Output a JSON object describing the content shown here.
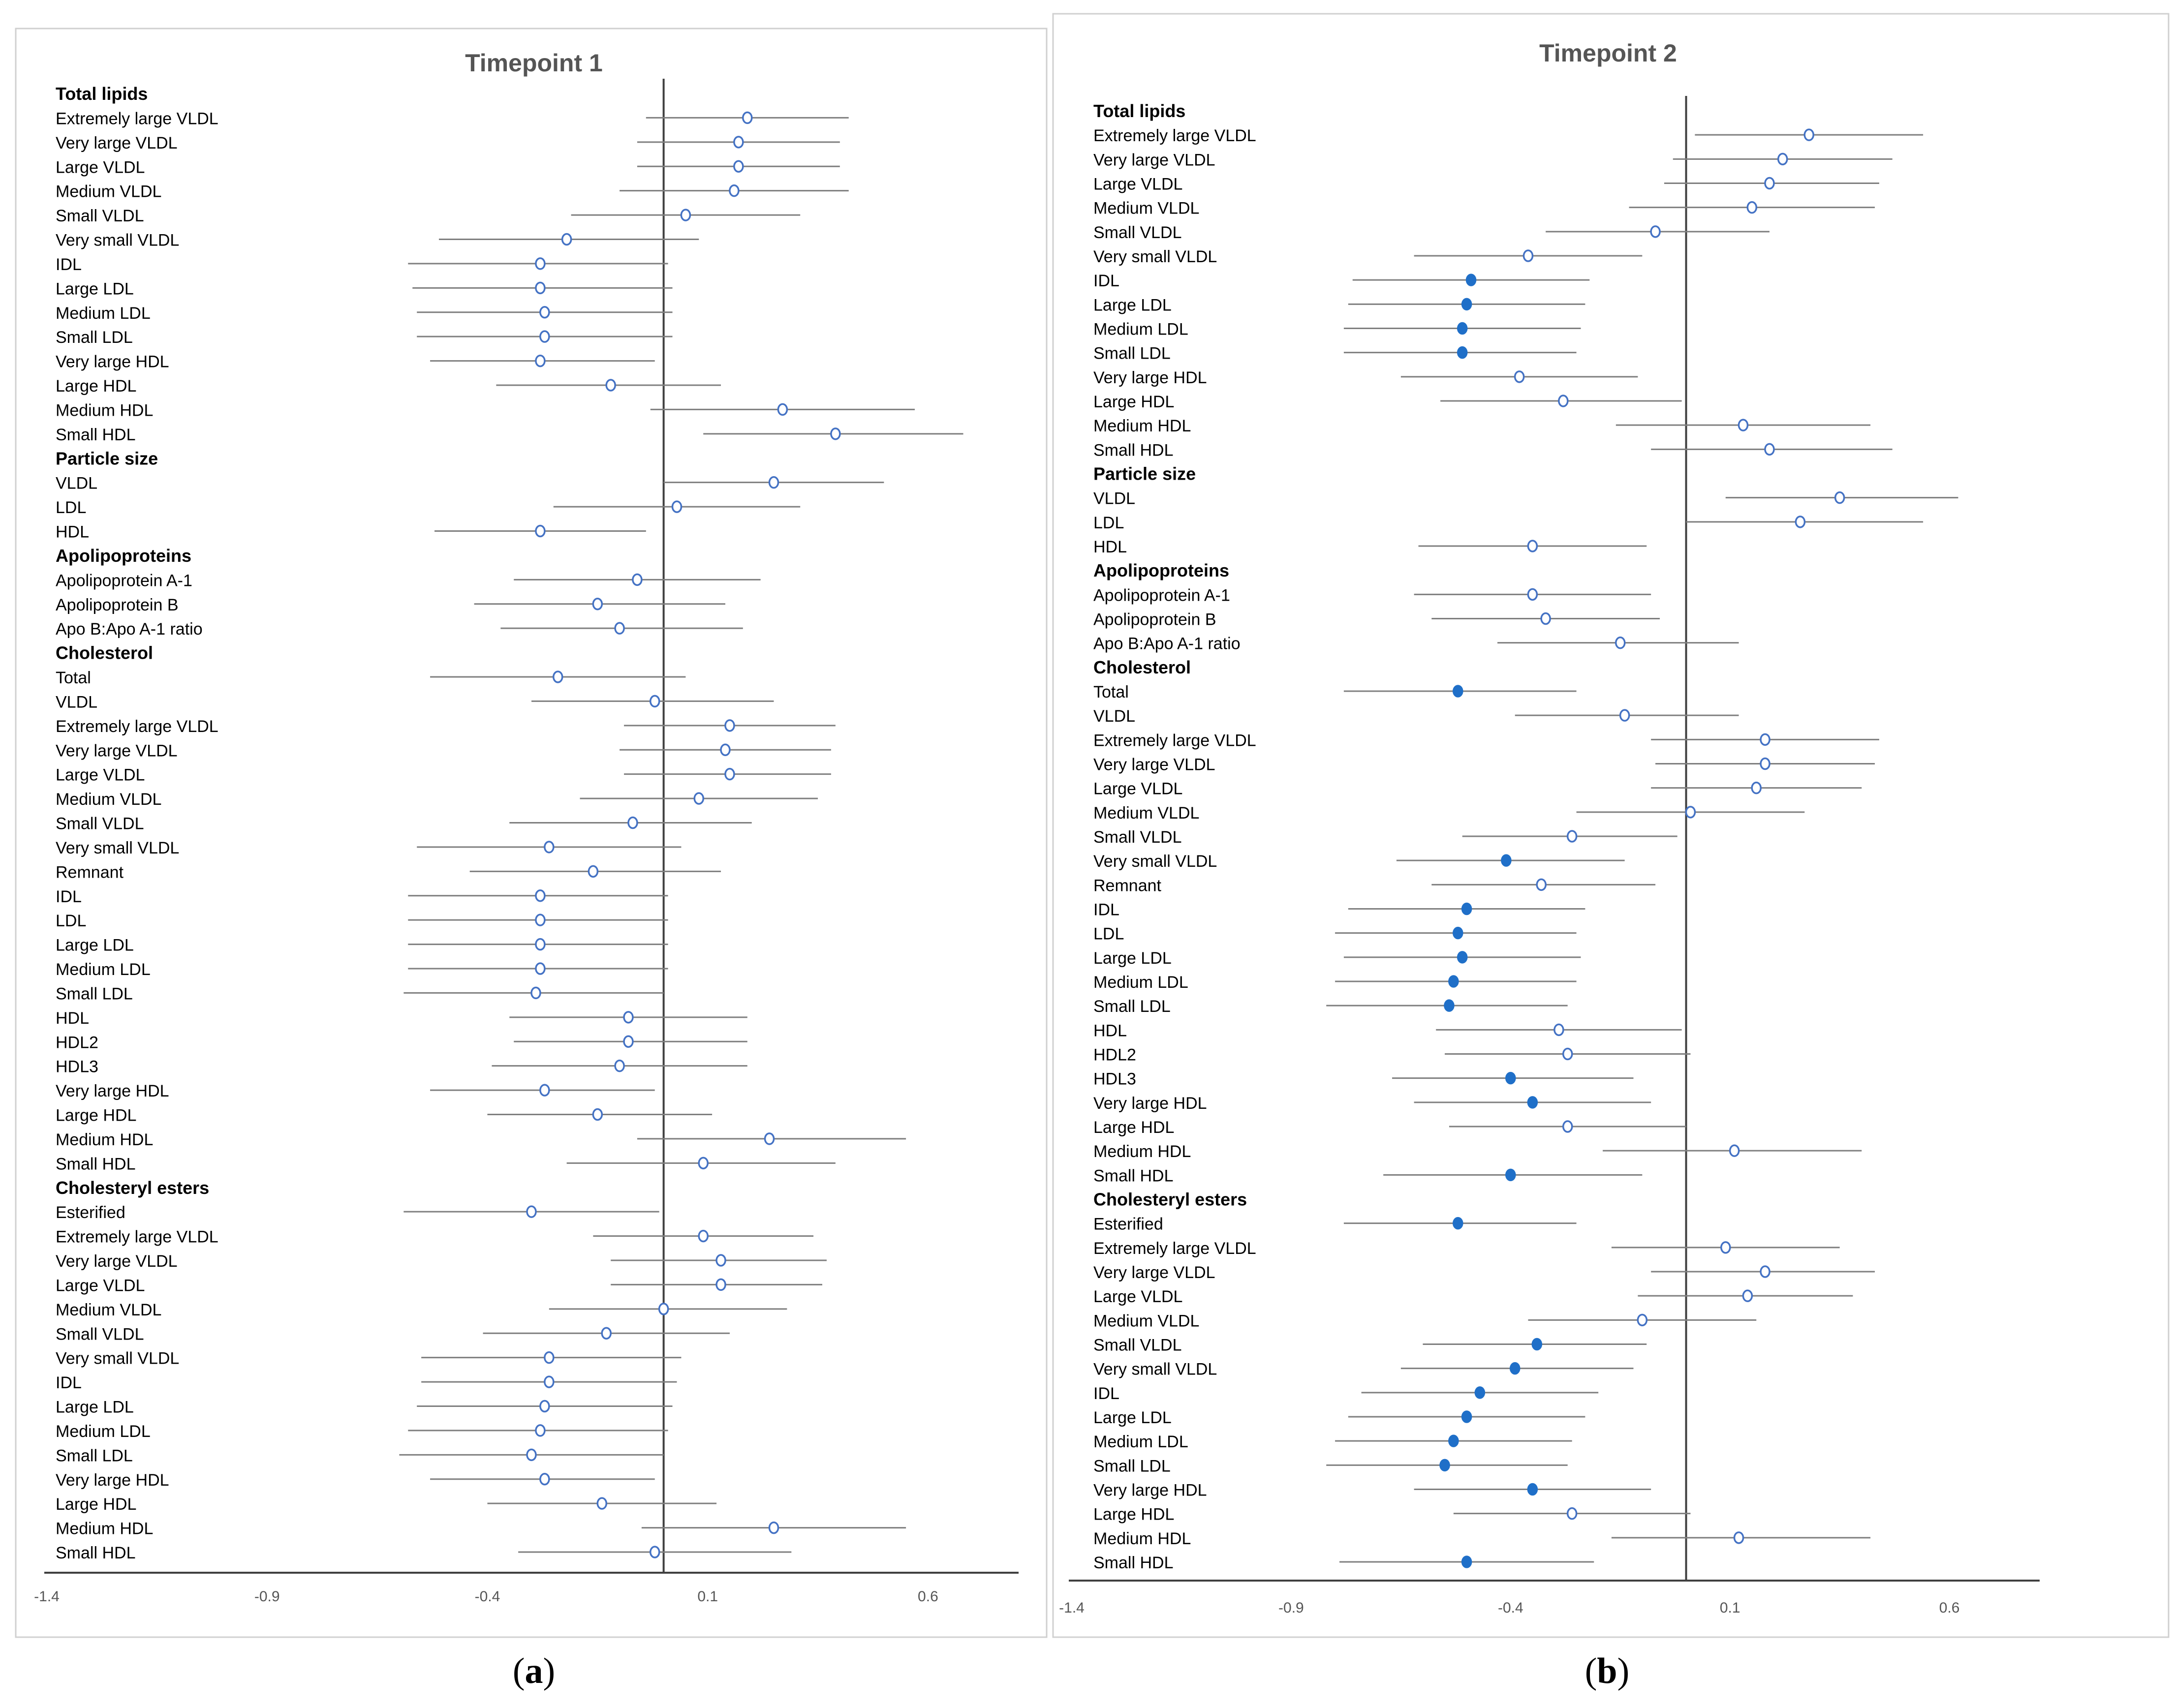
{
  "figure": {
    "captions": [
      {
        "open": "(",
        "letter": "a",
        "close": ")"
      },
      {
        "open": "(",
        "letter": "b",
        "close": ")"
      }
    ]
  },
  "colors": {
    "marker": "#4472C4",
    "marker_fill_significant": "#1F6FC8",
    "ci_line": "#7F7F7F",
    "axis": "#404040",
    "text": "#000000",
    "frame": "#D0D0D0"
  },
  "chart_data": [
    {
      "type": "forest",
      "title": "Timepoint 1",
      "xlim": [
        -1.4,
        0.8
      ],
      "xticks": [
        -1.4,
        -0.9,
        -0.4,
        0.1,
        0.6
      ],
      "xtick_labels": [
        "-1.4",
        "-0.9",
        "-0.4",
        "0.1",
        "0.6"
      ],
      "reference_line": 0,
      "rows": [
        {
          "label": "Total lipids",
          "header": true
        },
        {
          "label": "Extremely large VLDL",
          "est": 0.19,
          "lo": -0.04,
          "hi": 0.42,
          "sig": false
        },
        {
          "label": "Very large VLDL",
          "est": 0.17,
          "lo": -0.06,
          "hi": 0.4,
          "sig": false
        },
        {
          "label": "Large VLDL",
          "est": 0.17,
          "lo": -0.06,
          "hi": 0.4,
          "sig": false
        },
        {
          "label": "Medium VLDL",
          "est": 0.16,
          "lo": -0.1,
          "hi": 0.42,
          "sig": false
        },
        {
          "label": "Small VLDL",
          "est": 0.05,
          "lo": -0.21,
          "hi": 0.31,
          "sig": false
        },
        {
          "label": "Very small VLDL",
          "est": -0.22,
          "lo": -0.51,
          "hi": 0.08,
          "sig": false
        },
        {
          "label": "IDL",
          "est": -0.28,
          "lo": -0.58,
          "hi": 0.01,
          "sig": false
        },
        {
          "label": "Large LDL",
          "est": -0.28,
          "lo": -0.57,
          "hi": 0.02,
          "sig": false
        },
        {
          "label": "Medium LDL",
          "est": -0.27,
          "lo": -0.56,
          "hi": 0.02,
          "sig": false
        },
        {
          "label": "Small LDL",
          "est": -0.27,
          "lo": -0.56,
          "hi": 0.02,
          "sig": false
        },
        {
          "label": "Very large HDL",
          "est": -0.28,
          "lo": -0.53,
          "hi": -0.02,
          "sig": false
        },
        {
          "label": "Large HDL",
          "est": -0.12,
          "lo": -0.38,
          "hi": 0.13,
          "sig": false
        },
        {
          "label": "Medium HDL",
          "est": 0.27,
          "lo": -0.03,
          "hi": 0.57,
          "sig": false
        },
        {
          "label": "Small HDL",
          "est": 0.39,
          "lo": 0.09,
          "hi": 0.68,
          "sig": false
        },
        {
          "label": "Particle size",
          "header": true
        },
        {
          "label": "VLDL",
          "est": 0.25,
          "lo": 0.0,
          "hi": 0.5,
          "sig": false
        },
        {
          "label": "LDL",
          "est": 0.03,
          "lo": -0.25,
          "hi": 0.31,
          "sig": false
        },
        {
          "label": "HDL",
          "est": -0.28,
          "lo": -0.52,
          "hi": -0.04,
          "sig": false
        },
        {
          "label": "Apolipoproteins",
          "header": true
        },
        {
          "label": "Apolipoprotein A-1",
          "est": -0.06,
          "lo": -0.34,
          "hi": 0.22,
          "sig": false
        },
        {
          "label": "Apolipoprotein B",
          "est": -0.15,
          "lo": -0.43,
          "hi": 0.14,
          "sig": false
        },
        {
          "label": "Apo B:Apo A-1 ratio",
          "est": -0.1,
          "lo": -0.37,
          "hi": 0.18,
          "sig": false
        },
        {
          "label": "Cholesterol",
          "header": true
        },
        {
          "label": "Total",
          "est": -0.24,
          "lo": -0.53,
          "hi": 0.05,
          "sig": false
        },
        {
          "label": "VLDL",
          "est": -0.02,
          "lo": -0.3,
          "hi": 0.25,
          "sig": false
        },
        {
          "label": "Extremely large VLDL",
          "est": 0.15,
          "lo": -0.09,
          "hi": 0.39,
          "sig": false
        },
        {
          "label": "Very large VLDL",
          "est": 0.14,
          "lo": -0.1,
          "hi": 0.38,
          "sig": false
        },
        {
          "label": "Large VLDL",
          "est": 0.15,
          "lo": -0.09,
          "hi": 0.38,
          "sig": false
        },
        {
          "label": "Medium VLDL",
          "est": 0.08,
          "lo": -0.19,
          "hi": 0.35,
          "sig": false
        },
        {
          "label": "Small VLDL",
          "est": -0.07,
          "lo": -0.35,
          "hi": 0.2,
          "sig": false
        },
        {
          "label": "Very small VLDL",
          "est": -0.26,
          "lo": -0.56,
          "hi": 0.04,
          "sig": false
        },
        {
          "label": "Remnant",
          "est": -0.16,
          "lo": -0.44,
          "hi": 0.13,
          "sig": false
        },
        {
          "label": "IDL",
          "est": -0.28,
          "lo": -0.58,
          "hi": 0.01,
          "sig": false
        },
        {
          "label": "LDL",
          "est": -0.28,
          "lo": -0.58,
          "hi": 0.01,
          "sig": false
        },
        {
          "label": "Large LDL",
          "est": -0.28,
          "lo": -0.58,
          "hi": 0.01,
          "sig": false
        },
        {
          "label": "Medium LDL",
          "est": -0.28,
          "lo": -0.58,
          "hi": 0.01,
          "sig": false
        },
        {
          "label": "Small LDL",
          "est": -0.29,
          "lo": -0.59,
          "hi": 0.0,
          "sig": false
        },
        {
          "label": "HDL",
          "est": -0.08,
          "lo": -0.35,
          "hi": 0.19,
          "sig": false
        },
        {
          "label": "HDL2",
          "est": -0.08,
          "lo": -0.34,
          "hi": 0.19,
          "sig": false
        },
        {
          "label": "HDL3",
          "est": -0.1,
          "lo": -0.39,
          "hi": 0.19,
          "sig": false
        },
        {
          "label": "Very large HDL",
          "est": -0.27,
          "lo": -0.53,
          "hi": -0.02,
          "sig": false
        },
        {
          "label": "Large HDL",
          "est": -0.15,
          "lo": -0.4,
          "hi": 0.11,
          "sig": false
        },
        {
          "label": "Medium HDL",
          "est": 0.24,
          "lo": -0.06,
          "hi": 0.55,
          "sig": false
        },
        {
          "label": "Small HDL",
          "est": 0.09,
          "lo": -0.22,
          "hi": 0.39,
          "sig": false
        },
        {
          "label": "Cholesteryl esters",
          "header": true
        },
        {
          "label": "Esterified",
          "est": -0.3,
          "lo": -0.59,
          "hi": -0.01,
          "sig": false
        },
        {
          "label": "Extremely large VLDL",
          "est": 0.09,
          "lo": -0.16,
          "hi": 0.34,
          "sig": false
        },
        {
          "label": "Very large VLDL",
          "est": 0.13,
          "lo": -0.12,
          "hi": 0.37,
          "sig": false
        },
        {
          "label": "Large VLDL",
          "est": 0.13,
          "lo": -0.12,
          "hi": 0.36,
          "sig": false
        },
        {
          "label": "Medium VLDL",
          "est": 0.0,
          "lo": -0.26,
          "hi": 0.28,
          "sig": false
        },
        {
          "label": "Small VLDL",
          "est": -0.13,
          "lo": -0.41,
          "hi": 0.15,
          "sig": false
        },
        {
          "label": "Very small VLDL",
          "est": -0.26,
          "lo": -0.55,
          "hi": 0.04,
          "sig": false
        },
        {
          "label": "IDL",
          "est": -0.26,
          "lo": -0.55,
          "hi": 0.03,
          "sig": false
        },
        {
          "label": "Large LDL",
          "est": -0.27,
          "lo": -0.56,
          "hi": 0.02,
          "sig": false
        },
        {
          "label": "Medium LDL",
          "est": -0.28,
          "lo": -0.58,
          "hi": 0.01,
          "sig": false
        },
        {
          "label": "Small LDL",
          "est": -0.3,
          "lo": -0.6,
          "hi": 0.0,
          "sig": false
        },
        {
          "label": "Very large HDL",
          "est": -0.27,
          "lo": -0.53,
          "hi": -0.02,
          "sig": false
        },
        {
          "label": "Large HDL",
          "est": -0.14,
          "lo": -0.4,
          "hi": 0.12,
          "sig": false
        },
        {
          "label": "Medium HDL",
          "est": 0.25,
          "lo": -0.05,
          "hi": 0.55,
          "sig": false
        },
        {
          "label": "Small HDL",
          "est": -0.02,
          "lo": -0.33,
          "hi": 0.29,
          "sig": false
        }
      ]
    },
    {
      "type": "forest",
      "title": "Timepoint 2",
      "xlim": [
        -1.4,
        0.8
      ],
      "xticks": [
        -1.4,
        -0.9,
        -0.4,
        0.1,
        0.6
      ],
      "xtick_labels": [
        "-1.4",
        "-0.9",
        "-0.4",
        "0.1",
        "0.6"
      ],
      "reference_line": 0,
      "rows": [
        {
          "label": "Total lipids",
          "header": true
        },
        {
          "label": "Extremely large VLDL",
          "est": 0.28,
          "lo": 0.02,
          "hi": 0.54,
          "sig": false
        },
        {
          "label": "Very large VLDL",
          "est": 0.22,
          "lo": -0.03,
          "hi": 0.47,
          "sig": false
        },
        {
          "label": "Large VLDL",
          "est": 0.19,
          "lo": -0.05,
          "hi": 0.44,
          "sig": false
        },
        {
          "label": "Medium VLDL",
          "est": 0.15,
          "lo": -0.13,
          "hi": 0.43,
          "sig": false
        },
        {
          "label": "Small VLDL",
          "est": -0.07,
          "lo": -0.32,
          "hi": 0.19,
          "sig": false
        },
        {
          "label": "Very small VLDL",
          "est": -0.36,
          "lo": -0.62,
          "hi": -0.1,
          "sig": false
        },
        {
          "label": "IDL",
          "est": -0.49,
          "lo": -0.76,
          "hi": -0.22,
          "sig": true
        },
        {
          "label": "Large LDL",
          "est": -0.5,
          "lo": -0.77,
          "hi": -0.23,
          "sig": true
        },
        {
          "label": "Medium LDL",
          "est": -0.51,
          "lo": -0.78,
          "hi": -0.24,
          "sig": true
        },
        {
          "label": "Small LDL",
          "est": -0.51,
          "lo": -0.78,
          "hi": -0.25,
          "sig": true
        },
        {
          "label": "Very large HDL",
          "est": -0.38,
          "lo": -0.65,
          "hi": -0.11,
          "sig": false
        },
        {
          "label": "Large HDL",
          "est": -0.28,
          "lo": -0.56,
          "hi": -0.01,
          "sig": false
        },
        {
          "label": "Medium HDL",
          "est": 0.13,
          "lo": -0.16,
          "hi": 0.42,
          "sig": false
        },
        {
          "label": "Small HDL",
          "est": 0.19,
          "lo": -0.08,
          "hi": 0.47,
          "sig": false
        },
        {
          "label": "Particle size",
          "header": true
        },
        {
          "label": "VLDL",
          "est": 0.35,
          "lo": 0.09,
          "hi": 0.62,
          "sig": false
        },
        {
          "label": "LDL",
          "est": 0.26,
          "lo": 0.0,
          "hi": 0.54,
          "sig": false
        },
        {
          "label": "HDL",
          "est": -0.35,
          "lo": -0.61,
          "hi": -0.09,
          "sig": false
        },
        {
          "label": "Apolipoproteins",
          "header": true
        },
        {
          "label": "Apolipoprotein A-1",
          "est": -0.35,
          "lo": -0.62,
          "hi": -0.08,
          "sig": false
        },
        {
          "label": "Apolipoprotein B",
          "est": -0.32,
          "lo": -0.58,
          "hi": -0.06,
          "sig": false
        },
        {
          "label": "Apo B:Apo A-1 ratio",
          "est": -0.15,
          "lo": -0.43,
          "hi": 0.12,
          "sig": false
        },
        {
          "label": "Cholesterol",
          "header": true
        },
        {
          "label": "Total",
          "est": -0.52,
          "lo": -0.78,
          "hi": -0.25,
          "sig": true
        },
        {
          "label": "VLDL",
          "est": -0.14,
          "lo": -0.39,
          "hi": 0.12,
          "sig": false
        },
        {
          "label": "Extremely large VLDL",
          "est": 0.18,
          "lo": -0.08,
          "hi": 0.44,
          "sig": false
        },
        {
          "label": "Very large VLDL",
          "est": 0.18,
          "lo": -0.07,
          "hi": 0.43,
          "sig": false
        },
        {
          "label": "Large VLDL",
          "est": 0.16,
          "lo": -0.08,
          "hi": 0.4,
          "sig": false
        },
        {
          "label": "Medium VLDL",
          "est": 0.01,
          "lo": -0.25,
          "hi": 0.27,
          "sig": false
        },
        {
          "label": "Small VLDL",
          "est": -0.26,
          "lo": -0.51,
          "hi": -0.02,
          "sig": false
        },
        {
          "label": "Very small VLDL",
          "est": -0.41,
          "lo": -0.66,
          "hi": -0.14,
          "sig": true
        },
        {
          "label": "Remnant",
          "est": -0.33,
          "lo": -0.58,
          "hi": -0.07,
          "sig": false
        },
        {
          "label": "IDL",
          "est": -0.5,
          "lo": -0.77,
          "hi": -0.23,
          "sig": true
        },
        {
          "label": "LDL",
          "est": -0.52,
          "lo": -0.8,
          "hi": -0.25,
          "sig": true
        },
        {
          "label": "Large LDL",
          "est": -0.51,
          "lo": -0.78,
          "hi": -0.24,
          "sig": true
        },
        {
          "label": "Medium LDL",
          "est": -0.53,
          "lo": -0.8,
          "hi": -0.25,
          "sig": true
        },
        {
          "label": "Small LDL",
          "est": -0.54,
          "lo": -0.82,
          "hi": -0.27,
          "sig": true
        },
        {
          "label": "HDL",
          "est": -0.29,
          "lo": -0.57,
          "hi": -0.01,
          "sig": false
        },
        {
          "label": "HDL2",
          "est": -0.27,
          "lo": -0.55,
          "hi": 0.01,
          "sig": false
        },
        {
          "label": "HDL3",
          "est": -0.4,
          "lo": -0.67,
          "hi": -0.12,
          "sig": true
        },
        {
          "label": "Very large HDL",
          "est": -0.35,
          "lo": -0.62,
          "hi": -0.08,
          "sig": true
        },
        {
          "label": "Large HDL",
          "est": -0.27,
          "lo": -0.54,
          "hi": 0.0,
          "sig": false
        },
        {
          "label": "Medium HDL",
          "est": 0.11,
          "lo": -0.19,
          "hi": 0.4,
          "sig": false
        },
        {
          "label": "Small HDL",
          "est": -0.4,
          "lo": -0.69,
          "hi": -0.1,
          "sig": true
        },
        {
          "label": "Cholesteryl esters",
          "header": true
        },
        {
          "label": "Esterified",
          "est": -0.52,
          "lo": -0.78,
          "hi": -0.25,
          "sig": true
        },
        {
          "label": "Extremely large VLDL",
          "est": 0.09,
          "lo": -0.17,
          "hi": 0.35,
          "sig": false
        },
        {
          "label": "Very large VLDL",
          "est": 0.18,
          "lo": -0.08,
          "hi": 0.43,
          "sig": false
        },
        {
          "label": "Large VLDL",
          "est": 0.14,
          "lo": -0.11,
          "hi": 0.38,
          "sig": false
        },
        {
          "label": "Medium VLDL",
          "est": -0.1,
          "lo": -0.36,
          "hi": 0.16,
          "sig": false
        },
        {
          "label": "Small VLDL",
          "est": -0.34,
          "lo": -0.6,
          "hi": -0.09,
          "sig": true
        },
        {
          "label": "Very small VLDL",
          "est": -0.39,
          "lo": -0.65,
          "hi": -0.12,
          "sig": true
        },
        {
          "label": "IDL",
          "est": -0.47,
          "lo": -0.74,
          "hi": -0.2,
          "sig": true
        },
        {
          "label": "Large LDL",
          "est": -0.5,
          "lo": -0.77,
          "hi": -0.23,
          "sig": true
        },
        {
          "label": "Medium LDL",
          "est": -0.53,
          "lo": -0.8,
          "hi": -0.26,
          "sig": true
        },
        {
          "label": "Small LDL",
          "est": -0.55,
          "lo": -0.82,
          "hi": -0.27,
          "sig": true
        },
        {
          "label": "Very large HDL",
          "est": -0.35,
          "lo": -0.62,
          "hi": -0.08,
          "sig": true
        },
        {
          "label": "Large HDL",
          "est": -0.26,
          "lo": -0.53,
          "hi": 0.01,
          "sig": false
        },
        {
          "label": "Medium HDL",
          "est": 0.12,
          "lo": -0.17,
          "hi": 0.42,
          "sig": false
        },
        {
          "label": "Small HDL",
          "est": -0.5,
          "lo": -0.79,
          "hi": -0.21,
          "sig": true
        }
      ]
    }
  ]
}
